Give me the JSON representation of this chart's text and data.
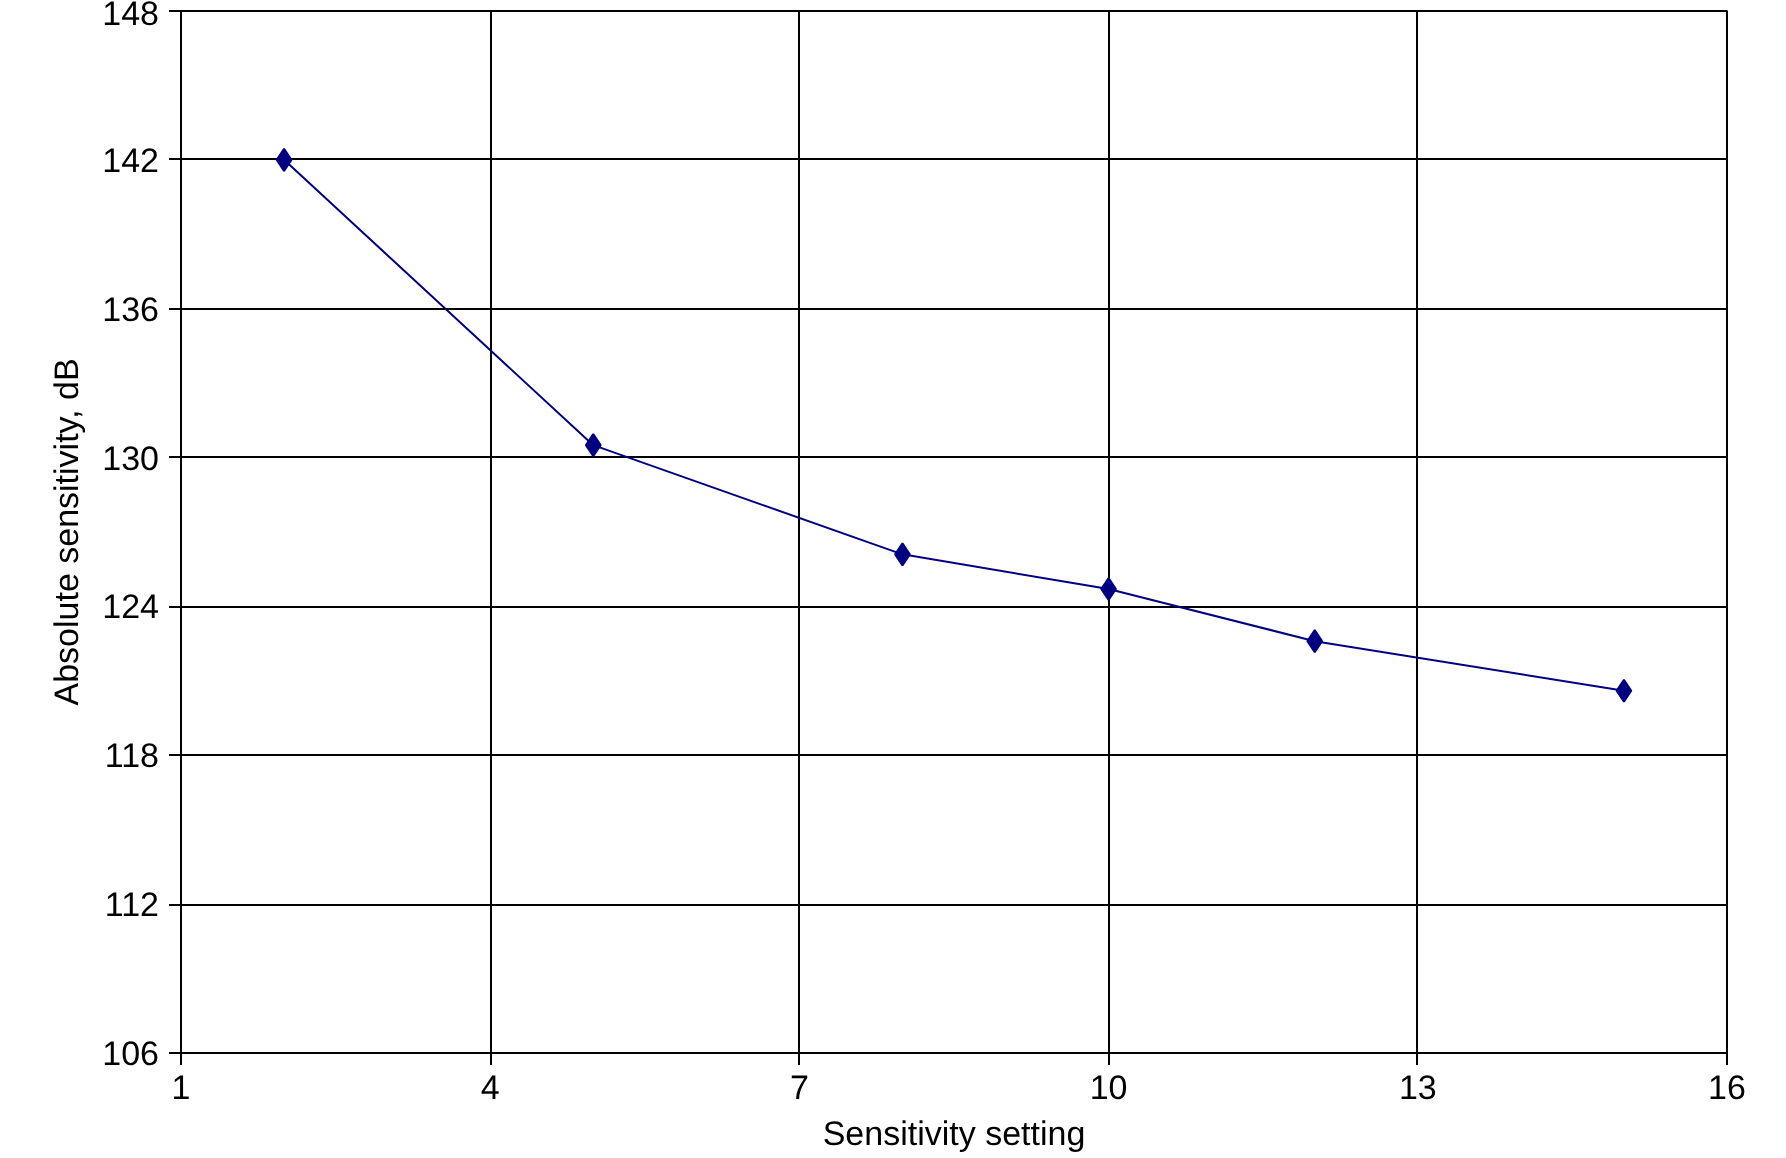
{
  "chart_data": {
    "type": "line",
    "xlabel": "Sensitivity setting",
    "ylabel": "Absolute sensitivity, dB",
    "x": [
      2,
      5,
      8,
      10,
      12,
      15
    ],
    "series": [
      {
        "color": "#000080",
        "values": [
          142.0,
          130.5,
          126.1,
          124.7,
          122.6,
          120.6
        ]
      }
    ],
    "xlim": [
      1,
      16
    ],
    "xticks": [
      1,
      4,
      7,
      10,
      13,
      16
    ],
    "ylim": [
      106,
      148
    ],
    "yticks": [
      106,
      112,
      118,
      124,
      130,
      136,
      142,
      148
    ],
    "grid": true,
    "marker": "diamond",
    "line_style": "solid"
  }
}
